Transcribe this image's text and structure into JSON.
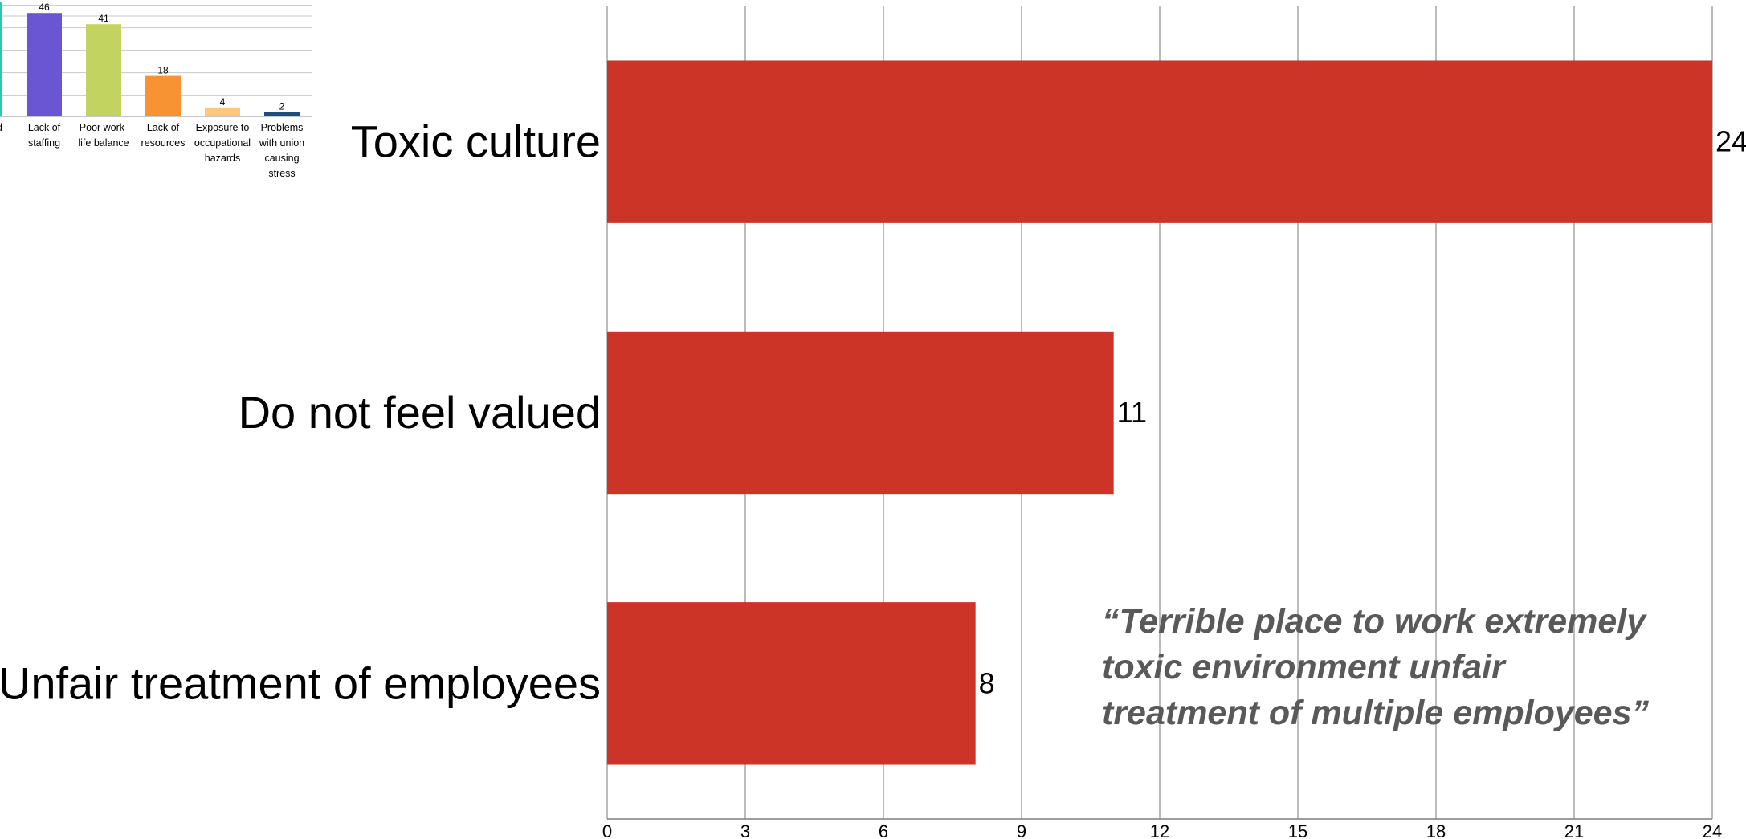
{
  "colors": {
    "main_bar": "#CB3426",
    "gridline": "#A6A6A6",
    "axis": "#7F7F7F",
    "quote_text": "#595959",
    "inset_accent": "#2EC4B6"
  },
  "chart_data": [
    {
      "type": "bar",
      "orientation": "horizontal",
      "title": "",
      "xlabel": "",
      "ylabel": "",
      "categories": [
        "Toxic culture",
        "Do not feel valued",
        "Unfair treatment of employees"
      ],
      "values": [
        24,
        11,
        8
      ],
      "xlim": [
        0,
        24
      ],
      "xticks": [
        0,
        3,
        6,
        9,
        12,
        15,
        18,
        21,
        24
      ],
      "grid": true
    },
    {
      "type": "bar",
      "title": "",
      "categories": [
        [
          "d"
        ],
        [
          "Lack of",
          "staffing"
        ],
        [
          "Poor work-",
          "life balance"
        ],
        [
          "Lack of",
          "resources"
        ],
        [
          "Exposure to",
          "occupational",
          "hazards"
        ],
        [
          "Problems",
          "with union",
          "causing",
          "stress"
        ]
      ],
      "values": [
        null,
        46,
        41,
        18,
        4,
        2
      ],
      "bar_colors": [
        "#2EC4B6",
        "#6A56D3",
        "#C3D35F",
        "#F79332",
        "#FCC978",
        "#1F4E79"
      ],
      "grid": true
    }
  ],
  "quote": {
    "lines": [
      "“Terrible place to work extremely",
      "toxic environment unfair",
      "treatment of multiple employees”"
    ]
  }
}
